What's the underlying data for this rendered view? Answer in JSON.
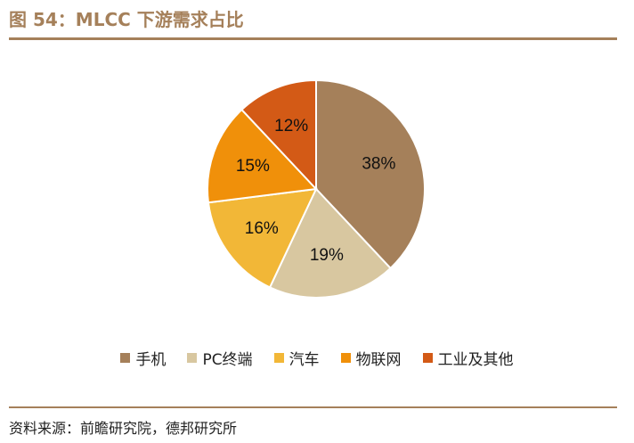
{
  "title": "图 54：MLCC 下游需求占比",
  "source": "资料来源：前瞻研究院，德邦研究所",
  "colors": {
    "accent": "#a5805a"
  },
  "chart_data": {
    "type": "pie",
    "legend_position": "bottom",
    "slices": [
      {
        "label": "手机",
        "value": 38,
        "display": "38%",
        "color": "#a5805a"
      },
      {
        "label": "PC终端",
        "value": 19,
        "display": "19%",
        "color": "#d8c7a0"
      },
      {
        "label": "汽车",
        "value": 16,
        "display": "16%",
        "color": "#f2b737"
      },
      {
        "label": "物联网",
        "value": 15,
        "display": "15%",
        "color": "#f0900a"
      },
      {
        "label": "工业及其他",
        "value": 12,
        "display": "12%",
        "color": "#d35a16"
      }
    ]
  }
}
